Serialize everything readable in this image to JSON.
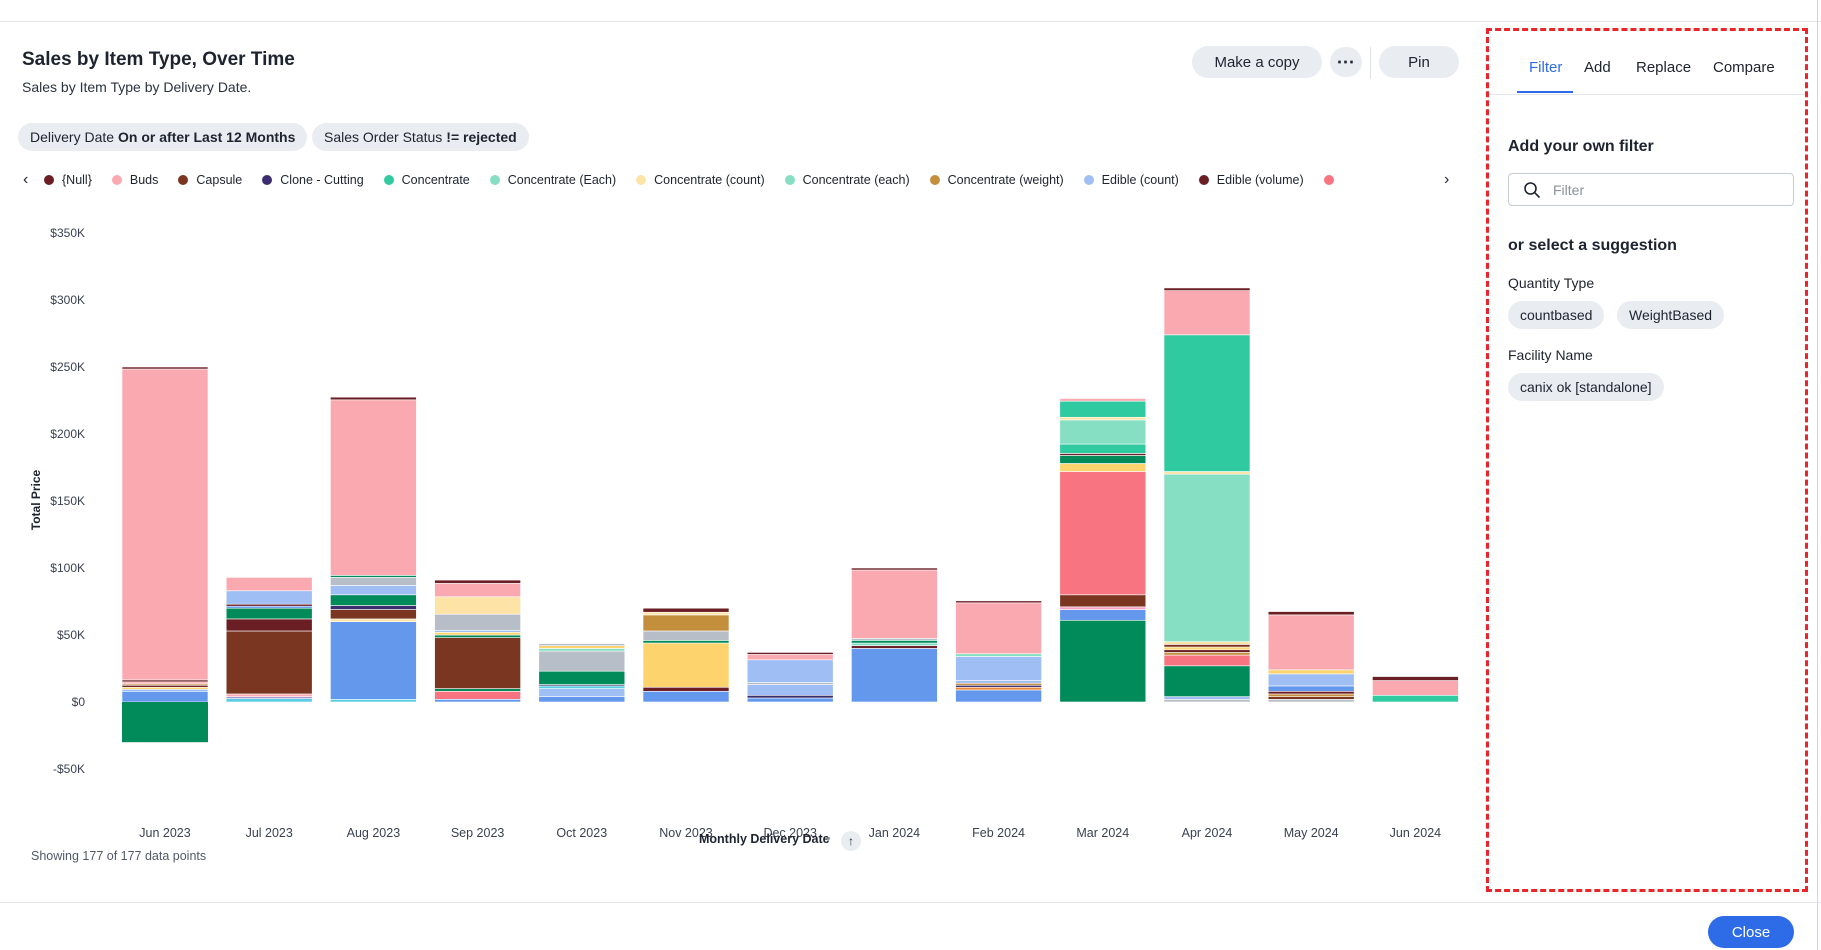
{
  "header": {
    "title": "Sales by Item Type, Over Time",
    "subtitle": "Sales by Item Type by Delivery Date."
  },
  "toolbar": {
    "copy_label": "Make a copy",
    "more_label": "⋯",
    "pin_label": "Pin"
  },
  "filters": [
    {
      "field": "Delivery Date",
      "value": "On or after Last 12 Months"
    },
    {
      "field": "Sales Order Status",
      "value": "!= rejected"
    }
  ],
  "legend": {
    "prev_label": "‹",
    "next_label": "›",
    "items": [
      {
        "label": "{Null}",
        "color": "#6b1e24"
      },
      {
        "label": "Buds",
        "color": "#fba9b0"
      },
      {
        "label": "Capsule",
        "color": "#7a3620"
      },
      {
        "label": "Clone - Cutting",
        "color": "#3b2e6e"
      },
      {
        "label": "Concentrate",
        "color": "#2fcaa0"
      },
      {
        "label": "Concentrate (Each)",
        "color": "#86dfc3"
      },
      {
        "label": "Concentrate (count)",
        "color": "#fde4a6"
      },
      {
        "label": "Concentrate (each)",
        "color": "#86dfc3"
      },
      {
        "label": "Concentrate (weight)",
        "color": "#c48f3c"
      },
      {
        "label": "Edible (count)",
        "color": "#9fbff4"
      },
      {
        "label": "Edible (volume)",
        "color": "#6b1e24"
      },
      {
        "label": "",
        "color": "#f87480"
      }
    ]
  },
  "chart_data": {
    "type": "bar",
    "stacked": true,
    "xlabel": "Monthly Delivery Date",
    "ylabel": "Total Price",
    "ylim": [
      -50000,
      350000
    ],
    "yticks": [
      -50000,
      0,
      50000,
      100000,
      150000,
      200000,
      250000,
      300000,
      350000
    ],
    "ytick_labels": [
      "-$50K",
      "$0",
      "$50K",
      "$100K",
      "$150K",
      "$200K",
      "$250K",
      "$300K",
      "$350K"
    ],
    "grid": false,
    "legend_position": "top",
    "categories": [
      "Jun 2023",
      "Jul 2023",
      "Aug 2023",
      "Sep 2023",
      "Oct 2023",
      "Nov 2023",
      "Dec 2023",
      "Jan 2024",
      "Feb 2024",
      "Mar 2024",
      "Apr 2024",
      "May 2024",
      "Jun 2024"
    ],
    "colors": {
      "green": "#018a5a",
      "blue": "#6398ec",
      "orange": "#e8863a",
      "purple": "#3b2e6e",
      "grey": "#b7bec8",
      "lightblue": "#9fbff4",
      "cyan": "#58cde3",
      "yellow": "#fdd36e",
      "buds": "#fba9b0",
      "null": "#6b1e24",
      "capsule": "#7a3620",
      "gold": "#c48f3c",
      "mint": "#86dfc3",
      "teal": "#2fcaa0",
      "cream": "#fde4a6",
      "red": "#f87480",
      "lilac": "#a29ad0",
      "pink": "#f7a1c4"
    },
    "stacks": [
      {
        "negative": [
          [
            "green",
            30000
          ]
        ],
        "positive": [
          [
            "blue",
            8000
          ],
          [
            "lightblue",
            1500
          ],
          [
            "yellow",
            1500
          ],
          [
            "null",
            1500
          ],
          [
            "gold",
            1000
          ],
          [
            "buds",
            1500
          ],
          [
            "null",
            1500
          ],
          [
            "buds",
            232000
          ],
          [
            "null",
            1500
          ]
        ]
      },
      {
        "negative": [],
        "positive": [
          [
            "cyan",
            2500
          ],
          [
            "lilac",
            1500
          ],
          [
            "buds",
            2000
          ],
          [
            "capsule",
            47000
          ],
          [
            "null",
            9000
          ],
          [
            "green",
            8000
          ],
          [
            "blue",
            1500
          ],
          [
            "null",
            1500
          ],
          [
            "lightblue",
            10000
          ],
          [
            "buds",
            10000
          ]
        ]
      },
      {
        "negative": [],
        "positive": [
          [
            "cyan",
            2000
          ],
          [
            "blue",
            58000
          ],
          [
            "cream",
            2000
          ],
          [
            "capsule",
            7000
          ],
          [
            "purple",
            3000
          ],
          [
            "green",
            8000
          ],
          [
            "lightblue",
            7000
          ],
          [
            "grey",
            6000
          ],
          [
            "green",
            1500
          ],
          [
            "buds",
            131000
          ],
          [
            "null",
            2000
          ]
        ]
      },
      {
        "negative": [],
        "positive": [
          [
            "blue",
            2000
          ],
          [
            "red",
            6000
          ],
          [
            "green",
            2000
          ],
          [
            "capsule",
            38000
          ],
          [
            "green",
            2000
          ],
          [
            "yellow",
            2000
          ],
          [
            "lightblue",
            1500
          ],
          [
            "grey",
            12000
          ],
          [
            "cream",
            13000
          ],
          [
            "buds",
            10000
          ],
          [
            "null",
            2500
          ]
        ]
      },
      {
        "negative": [],
        "positive": [
          [
            "blue",
            4000
          ],
          [
            "lightblue",
            6000
          ],
          [
            "cyan",
            2000
          ],
          [
            "purple",
            1000
          ],
          [
            "green",
            10000
          ],
          [
            "grey",
            15000
          ],
          [
            "mint",
            2000
          ],
          [
            "yellow",
            2000
          ],
          [
            "grey",
            1500
          ]
        ]
      },
      {
        "negative": [],
        "positive": [
          [
            "blue",
            8000
          ],
          [
            "null",
            3000
          ],
          [
            "yellow",
            33000
          ],
          [
            "green",
            2000
          ],
          [
            "grey",
            7000
          ],
          [
            "gold",
            12000
          ],
          [
            "cream",
            2000
          ],
          [
            "null",
            3000
          ]
        ]
      },
      {
        "negative": [],
        "positive": [
          [
            "blue",
            3000
          ],
          [
            "purple",
            2000
          ],
          [
            "lightblue",
            8000
          ],
          [
            "grey",
            1500
          ],
          [
            "lightblue",
            17000
          ],
          [
            "buds",
            4000
          ],
          [
            "null",
            1500
          ]
        ]
      },
      {
        "negative": [],
        "positive": [
          [
            "blue",
            40000
          ],
          [
            "null",
            2000
          ],
          [
            "mint",
            2000
          ],
          [
            "green",
            2000
          ],
          [
            "grey",
            1500
          ],
          [
            "buds",
            51000
          ],
          [
            "null",
            1500
          ]
        ]
      },
      {
        "negative": [],
        "positive": [
          [
            "blue",
            9000
          ],
          [
            "orange",
            2000
          ],
          [
            "purple",
            1500
          ],
          [
            "gold",
            1500
          ],
          [
            "lightblue",
            2000
          ],
          [
            "lightblue",
            18000
          ],
          [
            "mint",
            2000
          ],
          [
            "buds",
            38000
          ],
          [
            "null",
            1500
          ]
        ]
      },
      {
        "negative": [],
        "positive": [
          [
            "green",
            61000
          ],
          [
            "blue",
            8000
          ],
          [
            "pink",
            2000
          ],
          [
            "capsule",
            9000
          ],
          [
            "red",
            92000
          ],
          [
            "yellow",
            6000
          ],
          [
            "green",
            6000
          ],
          [
            "null",
            1500
          ],
          [
            "teal",
            7000
          ],
          [
            "mint",
            18000
          ],
          [
            "cream",
            2000
          ],
          [
            "teal",
            12000
          ],
          [
            "buds",
            2000
          ]
        ]
      },
      {
        "negative": [],
        "positive": [
          [
            "grey",
            2000
          ],
          [
            "lightblue",
            2000
          ],
          [
            "green",
            23000
          ],
          [
            "red",
            8000
          ],
          [
            "gold",
            2000
          ],
          [
            "null",
            2000
          ],
          [
            "yellow",
            2000
          ],
          [
            "capsule",
            2000
          ],
          [
            "cream",
            2000
          ],
          [
            "mint",
            125000
          ],
          [
            "cream",
            2000
          ],
          [
            "teal",
            102000
          ],
          [
            "buds",
            33000
          ],
          [
            "null",
            2000
          ]
        ]
      },
      {
        "negative": [],
        "positive": [
          [
            "grey",
            2000
          ],
          [
            "capsule",
            2000
          ],
          [
            "gold",
            2000
          ],
          [
            "null",
            2000
          ],
          [
            "blue",
            4000
          ],
          [
            "lightblue",
            9000
          ],
          [
            "yellow",
            3000
          ],
          [
            "buds",
            41000
          ],
          [
            "null",
            2500
          ]
        ]
      },
      {
        "negative": [],
        "positive": [
          [
            "teal",
            5000
          ],
          [
            "buds",
            11000
          ],
          [
            "null",
            3000
          ]
        ]
      }
    ]
  },
  "footer": {
    "data_count": "Showing 177 of 177 data points",
    "x_caret": "▾",
    "sort_icon": "↑"
  },
  "panel": {
    "tabs": [
      "Filter",
      "Add",
      "Replace",
      "Compare"
    ],
    "active_tab": "Filter",
    "heading": "Add your own filter",
    "filter_placeholder": "Filter",
    "suggest_heading": "or select a suggestion",
    "groups": [
      {
        "label": "Quantity Type",
        "chips": [
          "countbased",
          "WeightBased"
        ]
      },
      {
        "label": "Facility Name",
        "chips": [
          "canix ok [standalone]"
        ]
      }
    ]
  },
  "close_label": "Close",
  "accent_color": "#2e6be6",
  "highlight_color": "#e8262c"
}
